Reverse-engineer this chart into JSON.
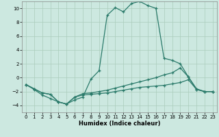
{
  "title": "",
  "xlabel": "Humidex (Indice chaleur)",
  "background_color": "#cce8e0",
  "grid_color": "#aaccbb",
  "line_color": "#2a7a6a",
  "xlim": [
    -0.5,
    23.5
  ],
  "ylim": [
    -5,
    11
  ],
  "xticks": [
    0,
    1,
    2,
    3,
    4,
    5,
    6,
    7,
    8,
    9,
    10,
    11,
    12,
    13,
    14,
    15,
    16,
    17,
    18,
    19,
    20,
    21,
    22,
    23
  ],
  "yticks": [
    -4,
    -2,
    0,
    2,
    4,
    6,
    8,
    10
  ],
  "line1": {
    "x": [
      0,
      1,
      2,
      3,
      4,
      5,
      6,
      7,
      8,
      9,
      10,
      11,
      12,
      13,
      14,
      15,
      16,
      17,
      18,
      19,
      20,
      21,
      22,
      23
    ],
    "y": [
      -1,
      -1.7,
      -2.5,
      -3.0,
      -3.5,
      -3.8,
      -3.2,
      -2.8,
      -0.2,
      1.0,
      9.0,
      10.1,
      9.5,
      10.7,
      11.0,
      10.4,
      10.0,
      2.8,
      2.5,
      2.0,
      0.1,
      -1.6,
      -2.0,
      -2.0
    ]
  },
  "line2": {
    "x": [
      0,
      1,
      2,
      3,
      4,
      5,
      6,
      7,
      8,
      9,
      10,
      11,
      12,
      13,
      14,
      15,
      16,
      17,
      18,
      19,
      20,
      21,
      22,
      23
    ],
    "y": [
      -1,
      -1.6,
      -2.2,
      -2.4,
      -3.5,
      -3.8,
      -2.8,
      -2.5,
      -2.4,
      -2.3,
      -2.2,
      -2.0,
      -1.8,
      -1.6,
      -1.4,
      -1.3,
      -1.2,
      -1.1,
      -0.9,
      -0.7,
      -0.3,
      -1.7,
      -2.0,
      -2.0
    ]
  },
  "line3": {
    "x": [
      0,
      1,
      2,
      3,
      4,
      5,
      6,
      7,
      8,
      9,
      10,
      11,
      12,
      13,
      14,
      15,
      16,
      17,
      18,
      19,
      20,
      21,
      22,
      23
    ],
    "y": [
      -1,
      -1.6,
      -2.2,
      -2.4,
      -3.5,
      -3.8,
      -2.8,
      -2.3,
      -2.2,
      -2.0,
      -1.8,
      -1.5,
      -1.2,
      -0.9,
      -0.6,
      -0.3,
      0.0,
      0.4,
      0.7,
      1.4,
      0.1,
      -1.7,
      -2.0,
      -2.0
    ]
  }
}
